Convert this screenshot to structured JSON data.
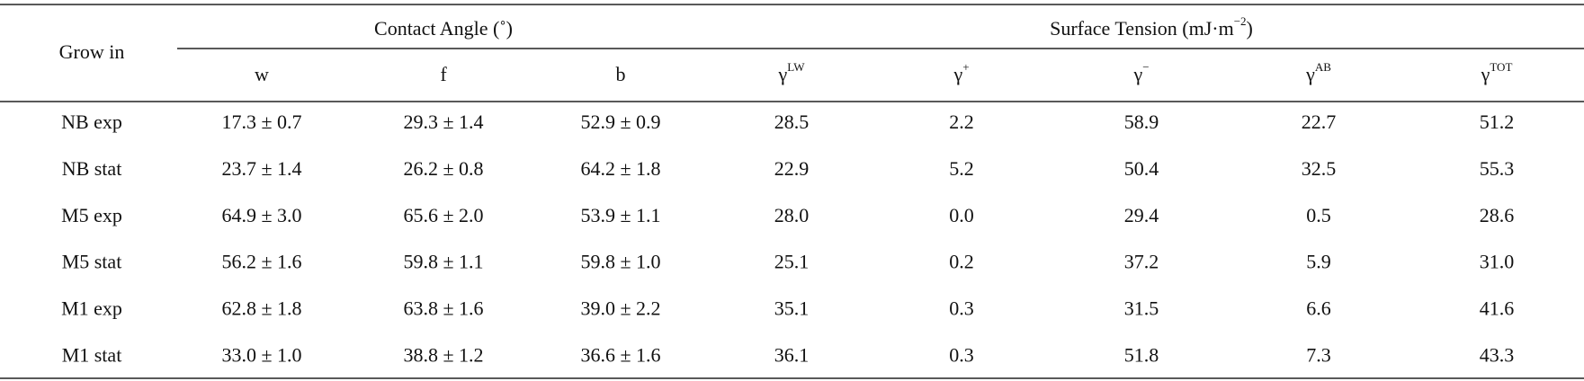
{
  "table": {
    "row_header": "Grow in",
    "groups": [
      {
        "text": "Contact Angle (˚)"
      },
      {
        "text": "Surface Tension (mJ·m",
        "sup": "−2",
        "tail": ")"
      }
    ],
    "columns": [
      "w",
      "f",
      "b",
      {
        "symbol": "γ",
        "sup": "LW"
      },
      {
        "symbol": "γ",
        "sup": "+"
      },
      {
        "symbol": "γ",
        "sup": "−"
      },
      {
        "symbol": "γ",
        "sup": "AB"
      },
      {
        "symbol": "γ",
        "sup": "TOT"
      }
    ],
    "rows": [
      [
        "NB exp",
        "17.3 ± 0.7",
        "29.3 ± 1.4",
        "52.9 ± 0.9",
        "28.5",
        "2.2",
        "58.9",
        "22.7",
        "51.2"
      ],
      [
        "NB stat",
        "23.7 ± 1.4",
        "26.2 ± 0.8",
        "64.2 ± 1.8",
        "22.9",
        "5.2",
        "50.4",
        "32.5",
        "55.3"
      ],
      [
        "M5 exp",
        "64.9 ± 3.0",
        "65.6 ± 2.0",
        "53.9 ± 1.1",
        "28.0",
        "0.0",
        "29.4",
        "0.5",
        "28.6"
      ],
      [
        "M5 stat",
        "56.2 ± 1.6",
        "59.8 ± 1.1",
        "59.8 ± 1.0",
        "25.1",
        "0.2",
        "37.2",
        "5.9",
        "31.0"
      ],
      [
        "M1 exp",
        "62.8 ± 1.8",
        "63.8 ± 1.6",
        "39.0 ± 2.2",
        "35.1",
        "0.3",
        "31.5",
        "6.6",
        "41.6"
      ],
      [
        "M1 stat",
        "33.0 ± 1.0",
        "38.8 ± 1.2",
        "36.6 ± 1.6",
        "36.1",
        "0.3",
        "51.8",
        "7.3",
        "43.3"
      ]
    ]
  }
}
